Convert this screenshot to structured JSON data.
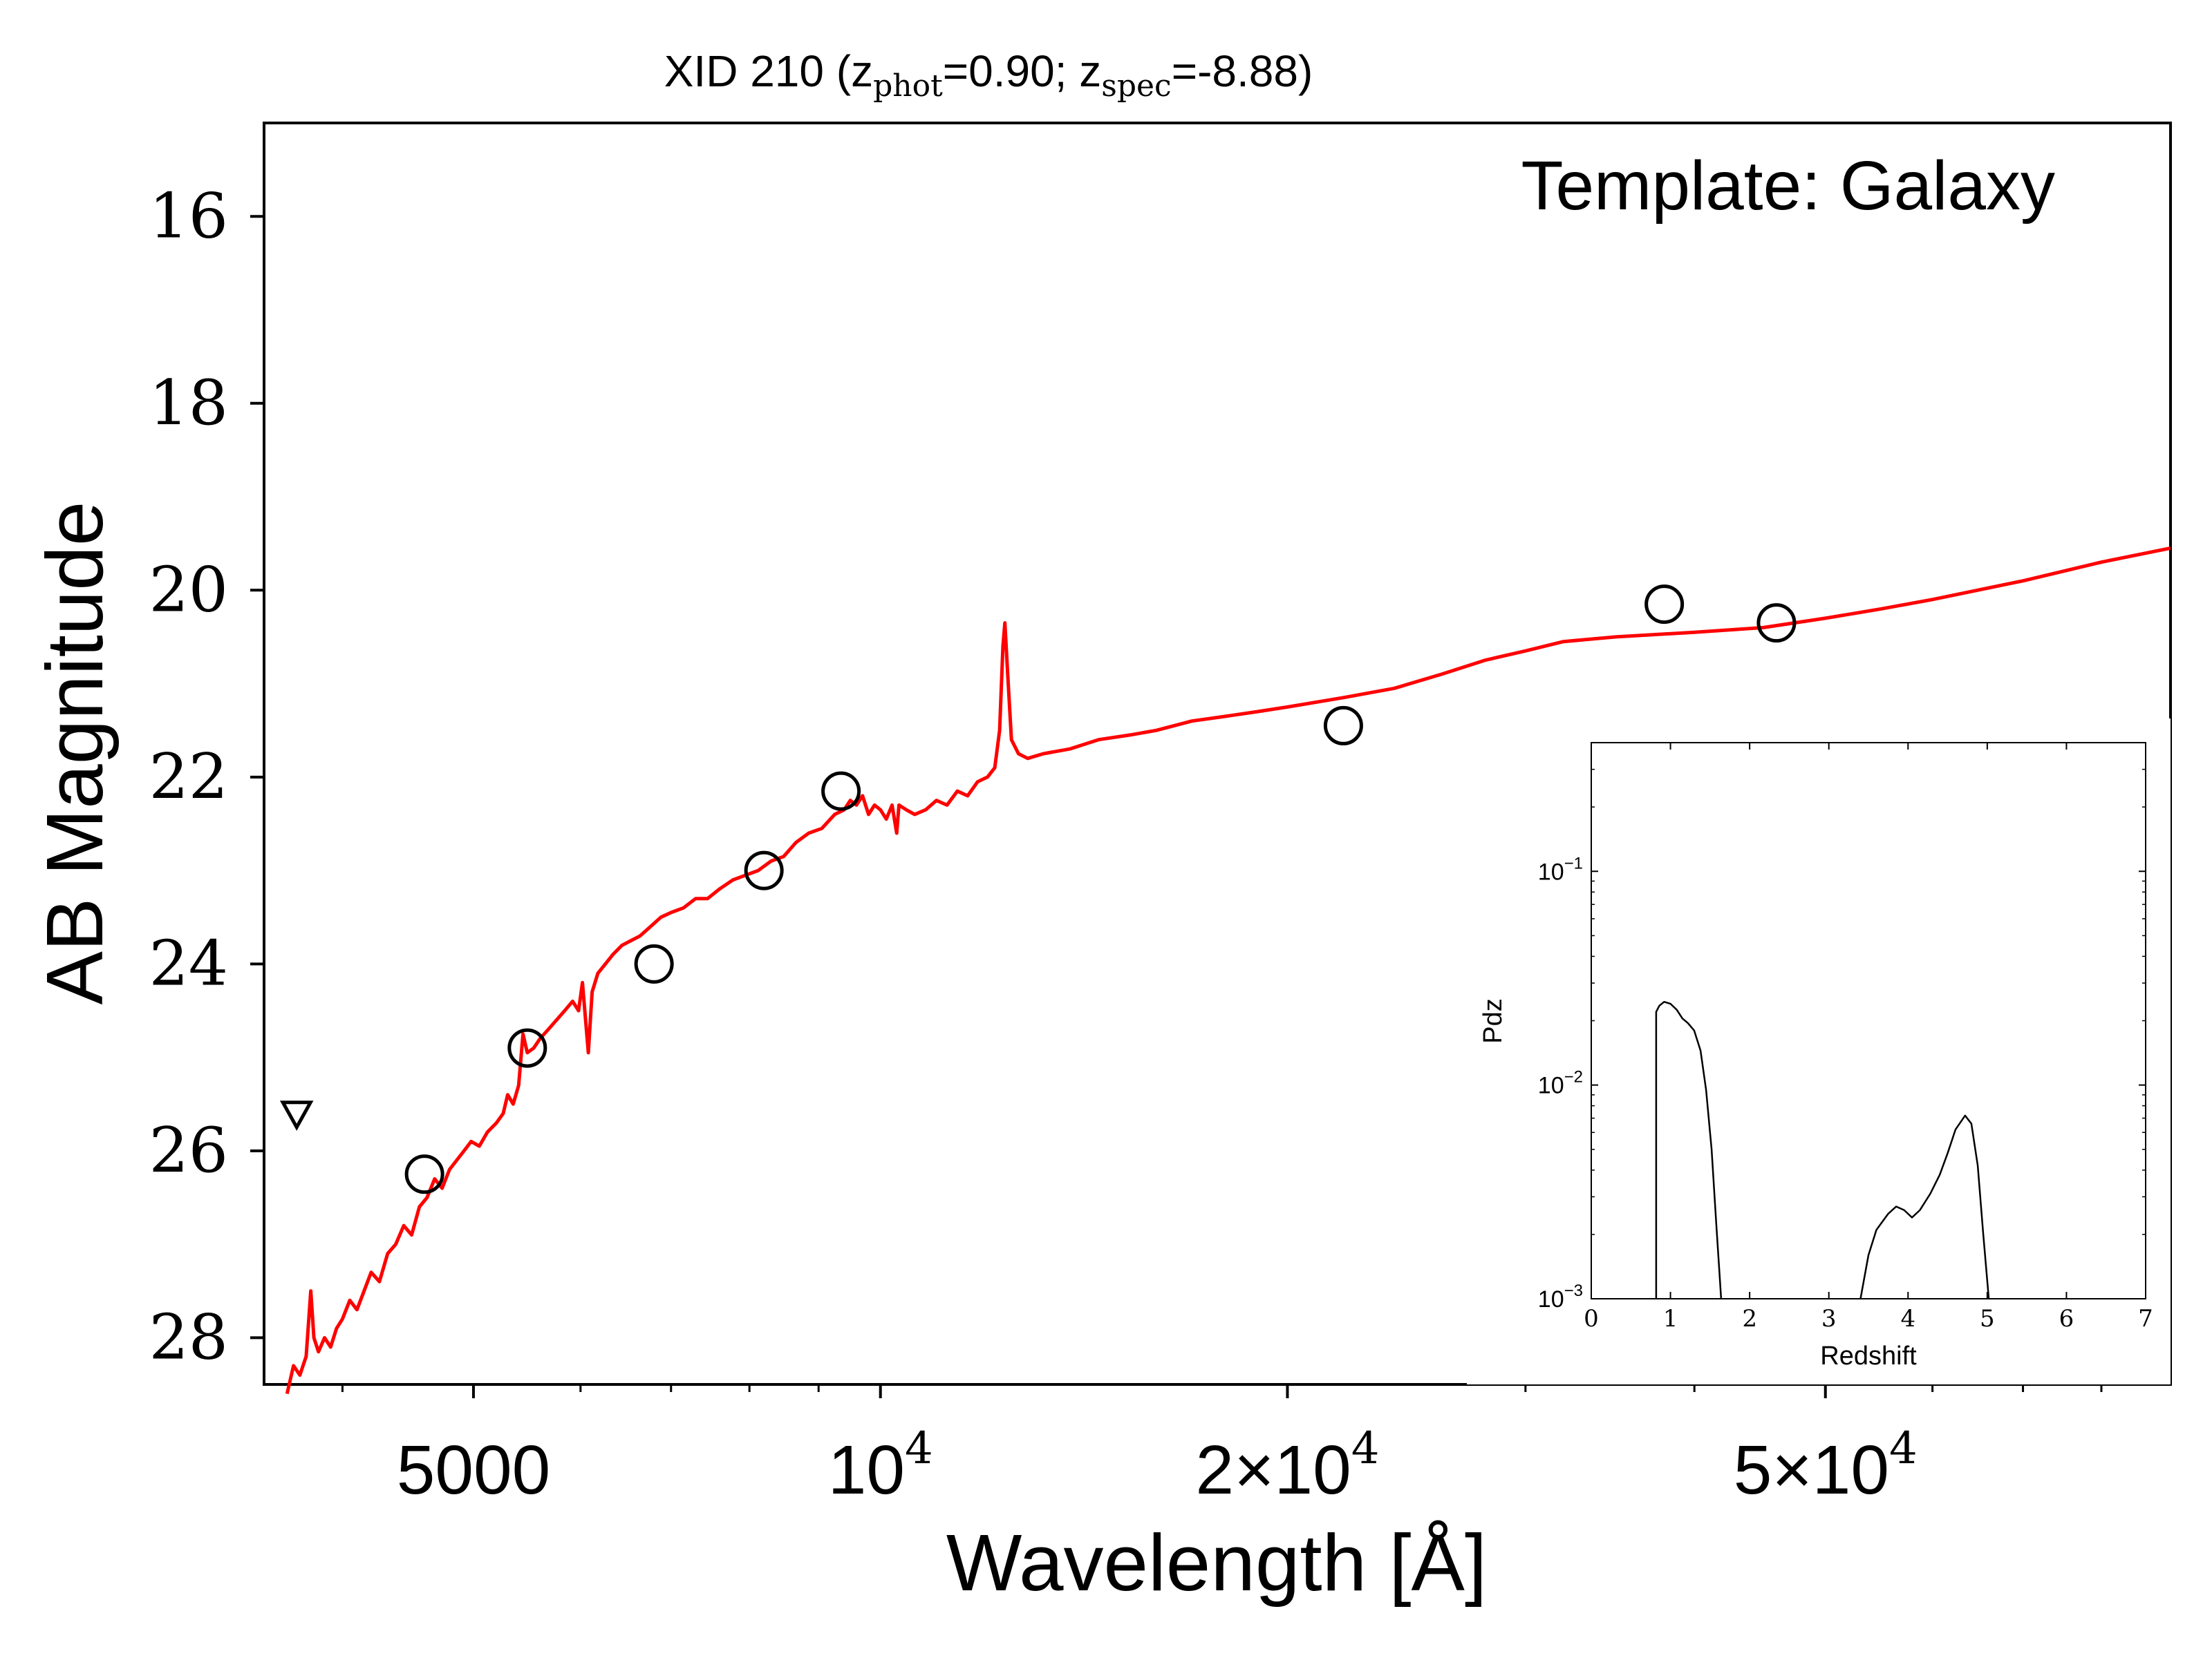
{
  "chart_data": [
    {
      "type": "line",
      "title_main": "XID 210 (z",
      "title_sub1": "phot",
      "title_mid": "=0.90; z",
      "title_sub2": "spec",
      "title_end": "=-8.88)",
      "annotation": "Template: Galaxy",
      "xlabel": "Wavelength [Å]",
      "ylabel": "AB Magnitude",
      "xscale": "log",
      "xlim": [
        3500,
        90000
      ],
      "ylim": [
        28.5,
        15
      ],
      "y_inverted": true,
      "grid": false,
      "y_ticks": [
        {
          "value": 16,
          "label": "16"
        },
        {
          "value": 18,
          "label": "18"
        },
        {
          "value": 20,
          "label": "20"
        },
        {
          "value": 22,
          "label": "22"
        },
        {
          "value": 24,
          "label": "24"
        },
        {
          "value": 26,
          "label": "26"
        },
        {
          "value": 28,
          "label": "28"
        }
      ],
      "x_ticks": [
        {
          "value": 5000,
          "label": "5000"
        },
        {
          "value": 10000,
          "label": "10",
          "sup": "4"
        },
        {
          "value": 20000,
          "label": "2×10",
          "sup": "4"
        },
        {
          "value": 50000,
          "label": "5×10",
          "sup": "4"
        }
      ],
      "x_minor_ticks": [
        4000,
        6000,
        7000,
        8000,
        9000,
        30000,
        40000,
        60000,
        70000,
        80000,
        90000
      ],
      "series": [
        {
          "role": "model",
          "color": "#ff0000",
          "points": [
            [
              3640,
              28.6
            ],
            [
              3680,
              28.3
            ],
            [
              3720,
              28.4
            ],
            [
              3760,
              28.2
            ],
            [
              3790,
              27.5
            ],
            [
              3810,
              28.0
            ],
            [
              3840,
              28.15
            ],
            [
              3880,
              28.0
            ],
            [
              3920,
              28.1
            ],
            [
              3960,
              27.9
            ],
            [
              4000,
              27.8
            ],
            [
              4050,
              27.6
            ],
            [
              4100,
              27.7
            ],
            [
              4150,
              27.5
            ],
            [
              4200,
              27.3
            ],
            [
              4260,
              27.4
            ],
            [
              4320,
              27.1
            ],
            [
              4380,
              27.0
            ],
            [
              4440,
              26.8
            ],
            [
              4500,
              26.9
            ],
            [
              4560,
              26.6
            ],
            [
              4620,
              26.5
            ],
            [
              4680,
              26.3
            ],
            [
              4740,
              26.4
            ],
            [
              4800,
              26.2
            ],
            [
              4860,
              26.1
            ],
            [
              4920,
              26.0
            ],
            [
              4980,
              25.9
            ],
            [
              5050,
              25.95
            ],
            [
              5120,
              25.8
            ],
            [
              5200,
              25.7
            ],
            [
              5260,
              25.6
            ],
            [
              5300,
              25.4
            ],
            [
              5350,
              25.5
            ],
            [
              5400,
              25.3
            ],
            [
              5440,
              24.75
            ],
            [
              5480,
              24.95
            ],
            [
              5540,
              24.9
            ],
            [
              5600,
              24.8
            ],
            [
              5680,
              24.7
            ],
            [
              5760,
              24.6
            ],
            [
              5840,
              24.5
            ],
            [
              5920,
              24.4
            ],
            [
              5980,
              24.5
            ],
            [
              6020,
              24.2
            ],
            [
              6080,
              24.95
            ],
            [
              6120,
              24.3
            ],
            [
              6180,
              24.1
            ],
            [
              6260,
              24.0
            ],
            [
              6340,
              23.9
            ],
            [
              6440,
              23.8
            ],
            [
              6540,
              23.75
            ],
            [
              6640,
              23.7
            ],
            [
              6760,
              23.6
            ],
            [
              6880,
              23.5
            ],
            [
              7000,
              23.45
            ],
            [
              7150,
              23.4
            ],
            [
              7300,
              23.3
            ],
            [
              7450,
              23.3
            ],
            [
              7600,
              23.2
            ],
            [
              7780,
              23.1
            ],
            [
              7950,
              23.05
            ],
            [
              8120,
              23.0
            ],
            [
              8300,
              22.9
            ],
            [
              8480,
              22.85
            ],
            [
              8660,
              22.7
            ],
            [
              8850,
              22.6
            ],
            [
              9050,
              22.55
            ],
            [
              9250,
              22.4
            ],
            [
              9400,
              22.35
            ],
            [
              9500,
              22.25
            ],
            [
              9600,
              22.3
            ],
            [
              9700,
              22.2
            ],
            [
              9800,
              22.4
            ],
            [
              9900,
              22.3
            ],
            [
              10000,
              22.35
            ],
            [
              10100,
              22.45
            ],
            [
              10200,
              22.3
            ],
            [
              10280,
              22.6
            ],
            [
              10320,
              22.3
            ],
            [
              10450,
              22.35
            ],
            [
              10600,
              22.4
            ],
            [
              10800,
              22.35
            ],
            [
              11000,
              22.25
            ],
            [
              11200,
              22.3
            ],
            [
              11400,
              22.15
            ],
            [
              11600,
              22.2
            ],
            [
              11800,
              22.05
            ],
            [
              12000,
              22.0
            ],
            [
              12150,
              21.9
            ],
            [
              12250,
              21.5
            ],
            [
              12320,
              20.6
            ],
            [
              12360,
              20.35
            ],
            [
              12420,
              20.9
            ],
            [
              12500,
              21.6
            ],
            [
              12650,
              21.75
            ],
            [
              12850,
              21.8
            ],
            [
              13200,
              21.75
            ],
            [
              13800,
              21.7
            ],
            [
              14500,
              21.6
            ],
            [
              15300,
              21.55
            ],
            [
              16000,
              21.5
            ],
            [
              17000,
              21.4
            ],
            [
              18000,
              21.35
            ],
            [
              19000,
              21.3
            ],
            [
              20000,
              21.25
            ],
            [
              22000,
              21.15
            ],
            [
              24000,
              21.05
            ],
            [
              26000,
              20.9
            ],
            [
              28000,
              20.75
            ],
            [
              30000,
              20.65
            ],
            [
              32000,
              20.55
            ],
            [
              35000,
              20.5
            ],
            [
              40000,
              20.45
            ],
            [
              45000,
              20.4
            ],
            [
              50000,
              20.3
            ],
            [
              55000,
              20.2
            ],
            [
              60000,
              20.1
            ],
            [
              70000,
              19.9
            ],
            [
              80000,
              19.7
            ],
            [
              90000,
              19.55
            ]
          ]
        }
      ],
      "photometry": [
        {
          "x": 4600,
          "y": 26.25
        },
        {
          "x": 5480,
          "y": 24.9
        },
        {
          "x": 6800,
          "y": 24.0
        },
        {
          "x": 8200,
          "y": 23.0
        },
        {
          "x": 9350,
          "y": 22.15
        },
        {
          "x": 22000,
          "y": 21.45
        },
        {
          "x": 38000,
          "y": 20.15
        },
        {
          "x": 46000,
          "y": 20.35
        }
      ],
      "upper_limits": [
        {
          "x": 3700,
          "y": 25.6
        }
      ]
    },
    {
      "type": "line",
      "role": "inset",
      "xlabel": "Redshift",
      "ylabel": "Pdz",
      "xscale": "linear",
      "yscale": "log",
      "xlim": [
        0,
        7
      ],
      "ylim": [
        0.001,
        0.4
      ],
      "x_ticks": [
        "0",
        "1",
        "2",
        "3",
        "4",
        "5",
        "6",
        "7"
      ],
      "y_ticks": [
        {
          "value": 0.1,
          "base": "10",
          "exp": "−1"
        },
        {
          "value": 0.01,
          "base": "10",
          "exp": "−2"
        },
        {
          "value": 0.001,
          "base": "10",
          "exp": "−3"
        }
      ],
      "series": [
        {
          "color": "#000000",
          "segments": [
            [
              [
                0.82,
                0.001
              ],
              [
                0.82,
                0.022
              ],
              [
                0.86,
                0.0235
              ],
              [
                0.92,
                0.0245
              ],
              [
                1.0,
                0.024
              ],
              [
                1.08,
                0.0225
              ],
              [
                1.15,
                0.0205
              ],
              [
                1.22,
                0.0195
              ],
              [
                1.3,
                0.018
              ],
              [
                1.38,
                0.0145
              ],
              [
                1.45,
                0.0095
              ],
              [
                1.52,
                0.005
              ],
              [
                1.58,
                0.0022
              ],
              [
                1.64,
                0.001
              ]
            ],
            [
              [
                3.4,
                0.001
              ],
              [
                3.5,
                0.0016
              ],
              [
                3.6,
                0.0021
              ],
              [
                3.75,
                0.0025
              ],
              [
                3.85,
                0.0027
              ],
              [
                3.95,
                0.0026
              ],
              [
                4.05,
                0.0024
              ],
              [
                4.15,
                0.0026
              ],
              [
                4.28,
                0.0031
              ],
              [
                4.4,
                0.0038
              ],
              [
                4.5,
                0.0048
              ],
              [
                4.6,
                0.0062
              ],
              [
                4.72,
                0.0072
              ],
              [
                4.8,
                0.0066
              ],
              [
                4.88,
                0.0042
              ],
              [
                4.95,
                0.002
              ],
              [
                5.02,
                0.001
              ]
            ]
          ]
        }
      ]
    }
  ]
}
